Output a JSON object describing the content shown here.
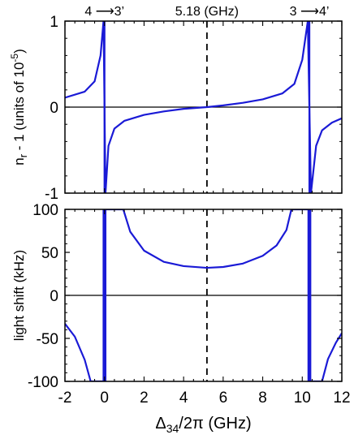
{
  "chart_data": [
    {
      "type": "line",
      "panel": "top",
      "xlim": [
        -2,
        12
      ],
      "ylim": [
        -1,
        1
      ],
      "ylabel": {
        "prefix": "n",
        "subscript": "r",
        "mid": " - 1 (units of 10",
        "superscript": "-5",
        "suffix": ")"
      },
      "yticks": [
        -1,
        0,
        1
      ],
      "ytick_labels": [
        "-1",
        "0",
        "1"
      ],
      "series_color": "#1a1ad6",
      "resonances": [
        0,
        10.36
      ],
      "series": [
        {
          "values": [
            {
              "x": -2.0,
              "y": 0.11
            },
            {
              "x": -1.0,
              "y": 0.18
            },
            {
              "x": -0.5,
              "y": 0.3
            },
            {
              "x": -0.2,
              "y": 0.6
            },
            {
              "x": -0.05,
              "y": 1.0
            },
            {
              "x": 0.05,
              "y": -1.0
            },
            {
              "x": 0.2,
              "y": -0.45
            },
            {
              "x": 0.5,
              "y": -0.25
            },
            {
              "x": 1.0,
              "y": -0.16
            },
            {
              "x": 2.0,
              "y": -0.09
            },
            {
              "x": 3.0,
              "y": -0.05
            },
            {
              "x": 4.0,
              "y": -0.02
            },
            {
              "x": 5.18,
              "y": 0.0
            },
            {
              "x": 6.0,
              "y": 0.02
            },
            {
              "x": 7.0,
              "y": 0.05
            },
            {
              "x": 8.0,
              "y": 0.09
            },
            {
              "x": 9.0,
              "y": 0.16
            },
            {
              "x": 9.6,
              "y": 0.27
            },
            {
              "x": 10.0,
              "y": 0.55
            },
            {
              "x": 10.28,
              "y": 1.0
            },
            {
              "x": 10.44,
              "y": -1.0
            },
            {
              "x": 10.7,
              "y": -0.45
            },
            {
              "x": 11.0,
              "y": -0.27
            },
            {
              "x": 11.5,
              "y": -0.18
            },
            {
              "x": 12.0,
              "y": -0.13
            }
          ]
        }
      ],
      "annotations": [
        {
          "text": "4 ⟶3’",
          "x": 0
        },
        {
          "text": "5.18 (GHz)",
          "x": 5.18
        },
        {
          "text": "3 ⟶4’",
          "x": 10.36
        }
      ],
      "dashed_vline_x": 5.18,
      "hline_y": 0
    },
    {
      "type": "line",
      "panel": "bottom",
      "xlim": [
        -2,
        12
      ],
      "ylim": [
        -100,
        100
      ],
      "ylabel": "light shift  (kHz)",
      "yticks": [
        -100,
        -50,
        0,
        50,
        100
      ],
      "ytick_labels": [
        "-100",
        "-50",
        "0",
        "50",
        "100"
      ],
      "xticks": [
        -2,
        0,
        2,
        4,
        6,
        8,
        10,
        12
      ],
      "xtick_labels": [
        "-2",
        "0",
        "2",
        "4",
        "6",
        "8",
        "10",
        "12"
      ],
      "xlabel": {
        "prefix": "Δ",
        "subscript": "34",
        "suffix": "/2π  (GHz)"
      },
      "series_color": "#1a1ad6",
      "resonances": [
        0,
        10.36
      ],
      "series": [
        {
          "values": [
            {
              "x": -2.0,
              "y": -33
            },
            {
              "x": -1.5,
              "y": -48
            },
            {
              "x": -1.0,
              "y": -75
            },
            {
              "x": -0.7,
              "y": -100
            },
            {
              "x": -0.05,
              "y": -100
            },
            {
              "x": -0.05,
              "y": 100
            },
            {
              "x": 0.05,
              "y": 100
            },
            {
              "x": 0.05,
              "y": -100
            },
            {
              "x": 0.05,
              "y": 100
            },
            {
              "x": 0.95,
              "y": 100
            },
            {
              "x": 1.3,
              "y": 74
            },
            {
              "x": 2.0,
              "y": 52
            },
            {
              "x": 3.0,
              "y": 39
            },
            {
              "x": 4.0,
              "y": 34
            },
            {
              "x": 5.18,
              "y": 32
            },
            {
              "x": 6.0,
              "y": 33
            },
            {
              "x": 7.0,
              "y": 37
            },
            {
              "x": 8.0,
              "y": 46
            },
            {
              "x": 8.7,
              "y": 58
            },
            {
              "x": 9.2,
              "y": 76
            },
            {
              "x": 9.45,
              "y": 100
            },
            {
              "x": 10.31,
              "y": 100
            },
            {
              "x": 10.31,
              "y": -100
            },
            {
              "x": 10.41,
              "y": -100
            },
            {
              "x": 10.41,
              "y": 100
            },
            {
              "x": 10.41,
              "y": -100
            },
            {
              "x": 11.0,
              "y": -100
            },
            {
              "x": 11.3,
              "y": -74
            },
            {
              "x": 11.7,
              "y": -55
            },
            {
              "x": 12.0,
              "y": -44
            }
          ]
        }
      ],
      "dashed_vline_x": 5.18,
      "hline_y": 0
    }
  ]
}
